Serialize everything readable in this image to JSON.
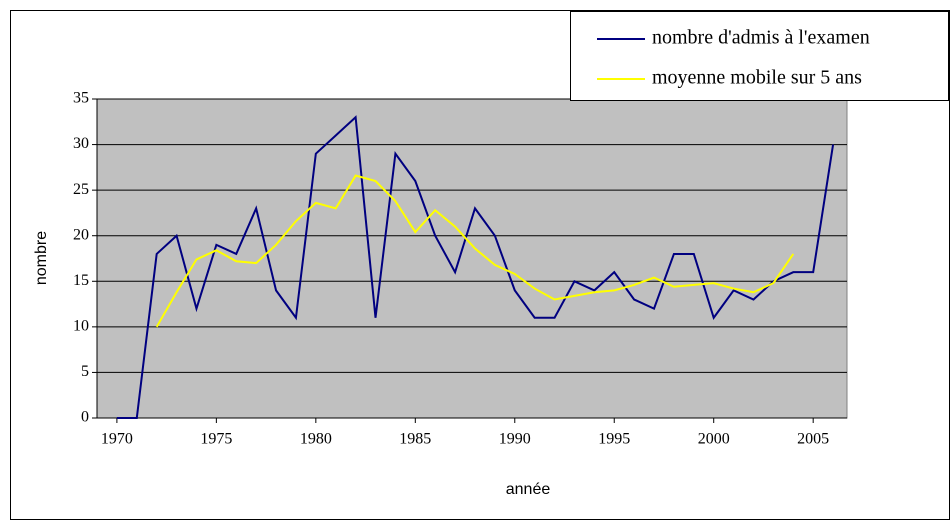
{
  "chart_data": {
    "type": "line",
    "xlabel": "année",
    "ylabel": "nombre",
    "x": [
      1970,
      1971,
      1972,
      1973,
      1974,
      1975,
      1976,
      1977,
      1978,
      1979,
      1980,
      1981,
      1982,
      1983,
      1984,
      1985,
      1986,
      1987,
      1988,
      1989,
      1990,
      1991,
      1992,
      1993,
      1994,
      1995,
      1996,
      1997,
      1998,
      1999,
      2000,
      2001,
      2002,
      2003,
      2004,
      2005,
      2006
    ],
    "series": [
      {
        "name": "nombre d'admis à l'examen",
        "color": "#000080",
        "values": [
          0,
          0,
          18,
          20,
          12,
          19,
          18,
          23,
          14,
          11,
          29,
          31,
          33,
          11,
          29,
          26,
          20,
          16,
          23,
          20,
          14,
          11,
          11,
          15,
          14,
          16,
          13,
          12,
          18,
          18,
          11,
          14,
          13,
          15,
          16,
          16,
          30
        ]
      },
      {
        "name": "moyenne mobile sur 5 ans",
        "color": "#ffff00",
        "values": [
          null,
          null,
          10,
          13.8,
          17.4,
          18.4,
          17.2,
          17,
          19,
          21.6,
          23.6,
          23,
          26.6,
          26,
          23.8,
          20.4,
          22.8,
          21,
          18.6,
          16.8,
          15.8,
          14.2,
          13,
          13.4,
          13.8,
          14,
          14.6,
          15.4,
          14.4,
          14.6,
          14.8,
          14.2,
          13.8,
          14.8,
          18,
          null,
          null
        ]
      }
    ],
    "xlim": [
      1969,
      2006.7
    ],
    "xticks": [
      1970,
      1975,
      1980,
      1985,
      1990,
      1995,
      2000,
      2005
    ],
    "ylim": [
      0,
      35
    ],
    "yticks": [
      0,
      5,
      10,
      15,
      20,
      25,
      30,
      35
    ],
    "grid": true,
    "plot_background": "#c0c0c0",
    "legend": "top-right"
  }
}
